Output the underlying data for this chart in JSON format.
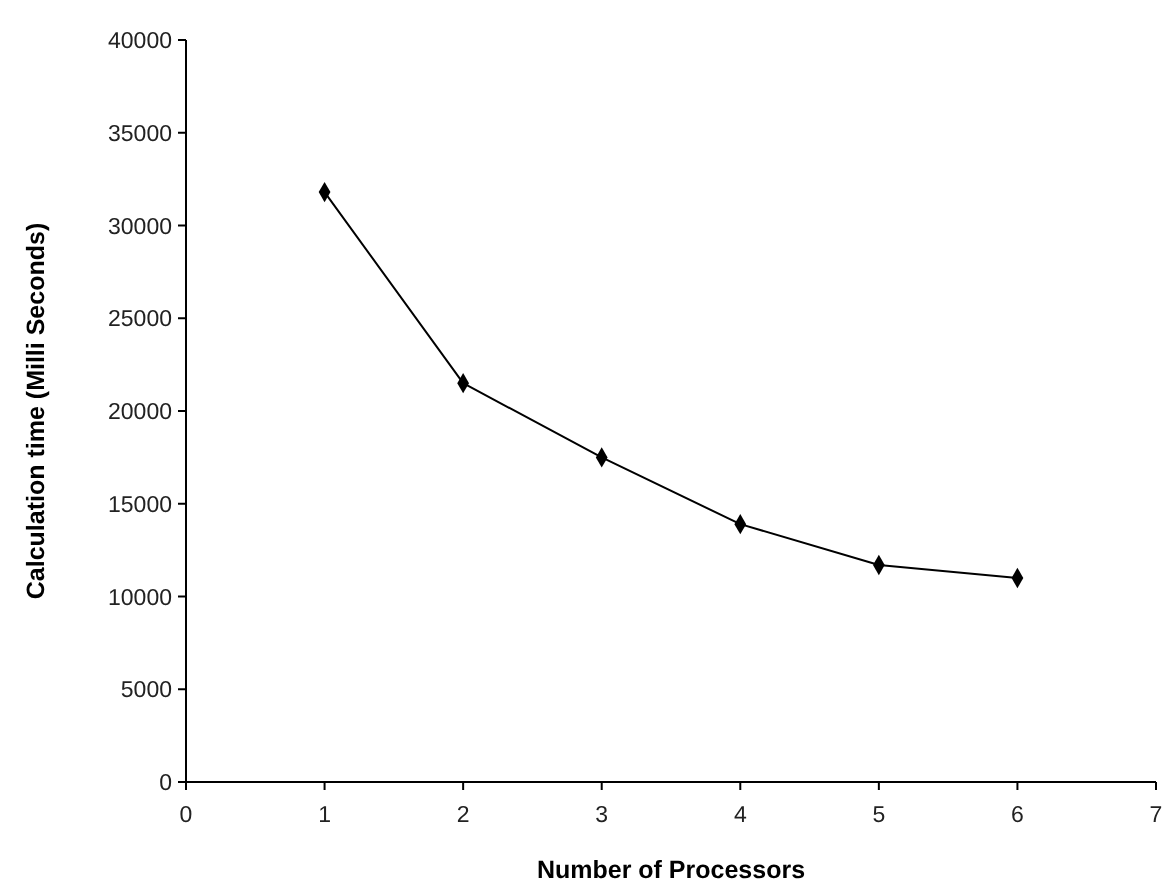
{
  "chart_data": {
    "type": "line",
    "xlabel": "Number of Processors",
    "ylabel": "Calculation time (Milli Seconds)",
    "x": [
      1,
      2,
      3,
      4,
      5,
      6
    ],
    "series": [
      {
        "color": "#000000",
        "values": [
          31800,
          21500,
          17500,
          13900,
          11700,
          11000
        ]
      }
    ],
    "xlim": [
      0,
      7
    ],
    "xticks": [
      0,
      1,
      2,
      3,
      4,
      5,
      6,
      7
    ],
    "ylim": [
      0,
      40000
    ],
    "yticks": [
      0,
      5000,
      10000,
      15000,
      20000,
      25000,
      30000,
      35000,
      40000
    ],
    "grid": false,
    "marker": "diamond",
    "line_style": "solid"
  }
}
